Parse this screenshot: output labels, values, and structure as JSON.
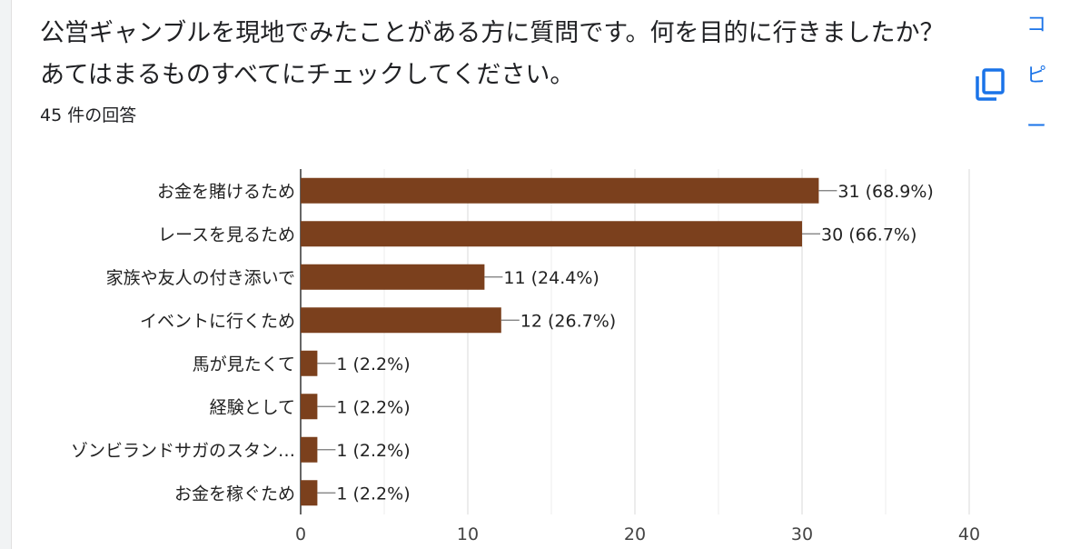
{
  "question": {
    "title": "公営ギャンブルを現地でみたことがある方に質問です。何を目的に行きましたか？あてはまるものすべてにチェックしてください。",
    "response_count": "45 件の回答"
  },
  "actions": {
    "copy_label_chars": [
      "コ",
      "ピ",
      "ー"
    ],
    "copy_icon": "copy-icon",
    "accent_color": "#1a73e8"
  },
  "chart_data": {
    "type": "bar",
    "orientation": "horizontal",
    "categories": [
      "お金を賭けるため",
      "レースを見るため",
      "家族や友人の付き添いで",
      "イベントに行くため",
      "馬が見たくて",
      "経験として",
      "ゾンビランドサガのスタン…",
      "お金を稼ぐため"
    ],
    "values": [
      31,
      30,
      11,
      12,
      1,
      1,
      1,
      1
    ],
    "data_labels": [
      "31 (68.9%)",
      "30 (66.7%)",
      "11 (24.4%)",
      "12 (26.7%)",
      "1 (2.2%)",
      "1 (2.2%)",
      "1 (2.2%)",
      "1 (2.2%)"
    ],
    "xlim": [
      0,
      40
    ],
    "xticks": [
      0,
      10,
      20,
      30,
      40
    ],
    "bar_color": "#7b401d",
    "grid": true
  }
}
